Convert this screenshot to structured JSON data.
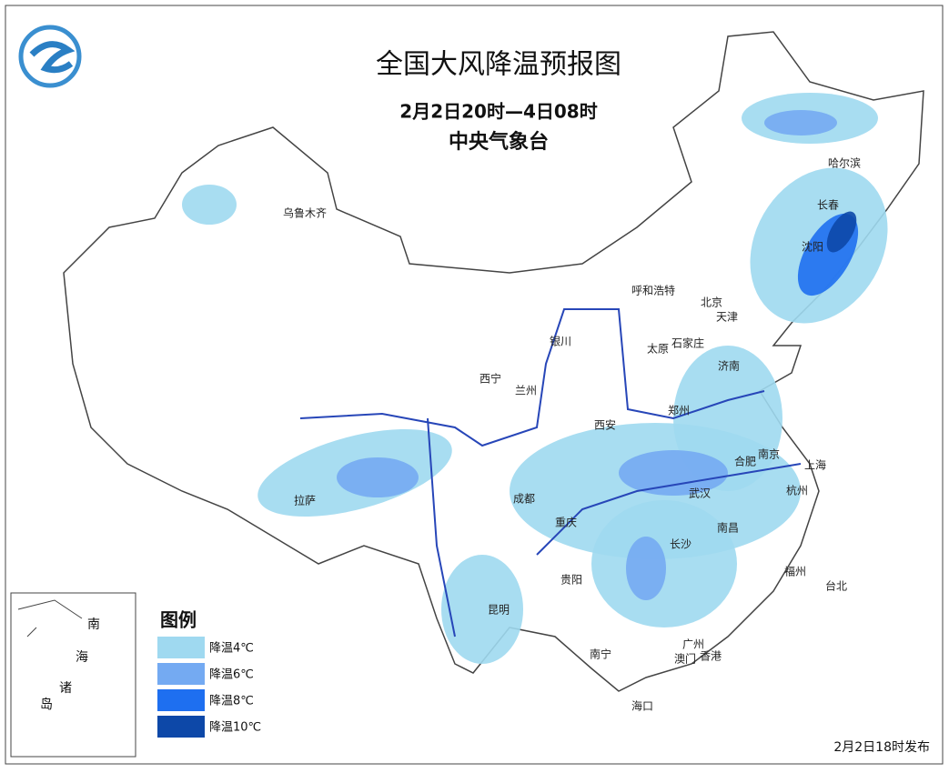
{
  "header": {
    "title": "全国大风降温预报图",
    "period": "2月2日20时—4日08时",
    "issuer": "中央气象台"
  },
  "cities": [
    "乌鲁木齐",
    "哈尔滨",
    "长春",
    "沈阳",
    "呼和浩特",
    "北京",
    "天津",
    "石家庄",
    "太原",
    "银川",
    "西宁",
    "兰州",
    "济南",
    "郑州",
    "西安",
    "南京",
    "合肥",
    "上海",
    "杭州",
    "武汉",
    "成都",
    "重庆",
    "拉萨",
    "南昌",
    "长沙",
    "贵阳",
    "福州",
    "台北",
    "昆明",
    "广州",
    "南宁",
    "澳门",
    "香港",
    "海口"
  ],
  "legend": {
    "title": "图例",
    "items": [
      {
        "label": "降温4℃",
        "color": "#9fd9f0"
      },
      {
        "label": "降温6℃",
        "color": "#74aaf2"
      },
      {
        "label": "降温8℃",
        "color": "#1e6ff0"
      },
      {
        "label": "降温10℃",
        "color": "#0d48a8"
      }
    ]
  },
  "inset": {
    "labels": [
      "南",
      "海",
      "诸",
      "岛"
    ]
  },
  "footer": {
    "issued": "2月2日18时发布"
  }
}
